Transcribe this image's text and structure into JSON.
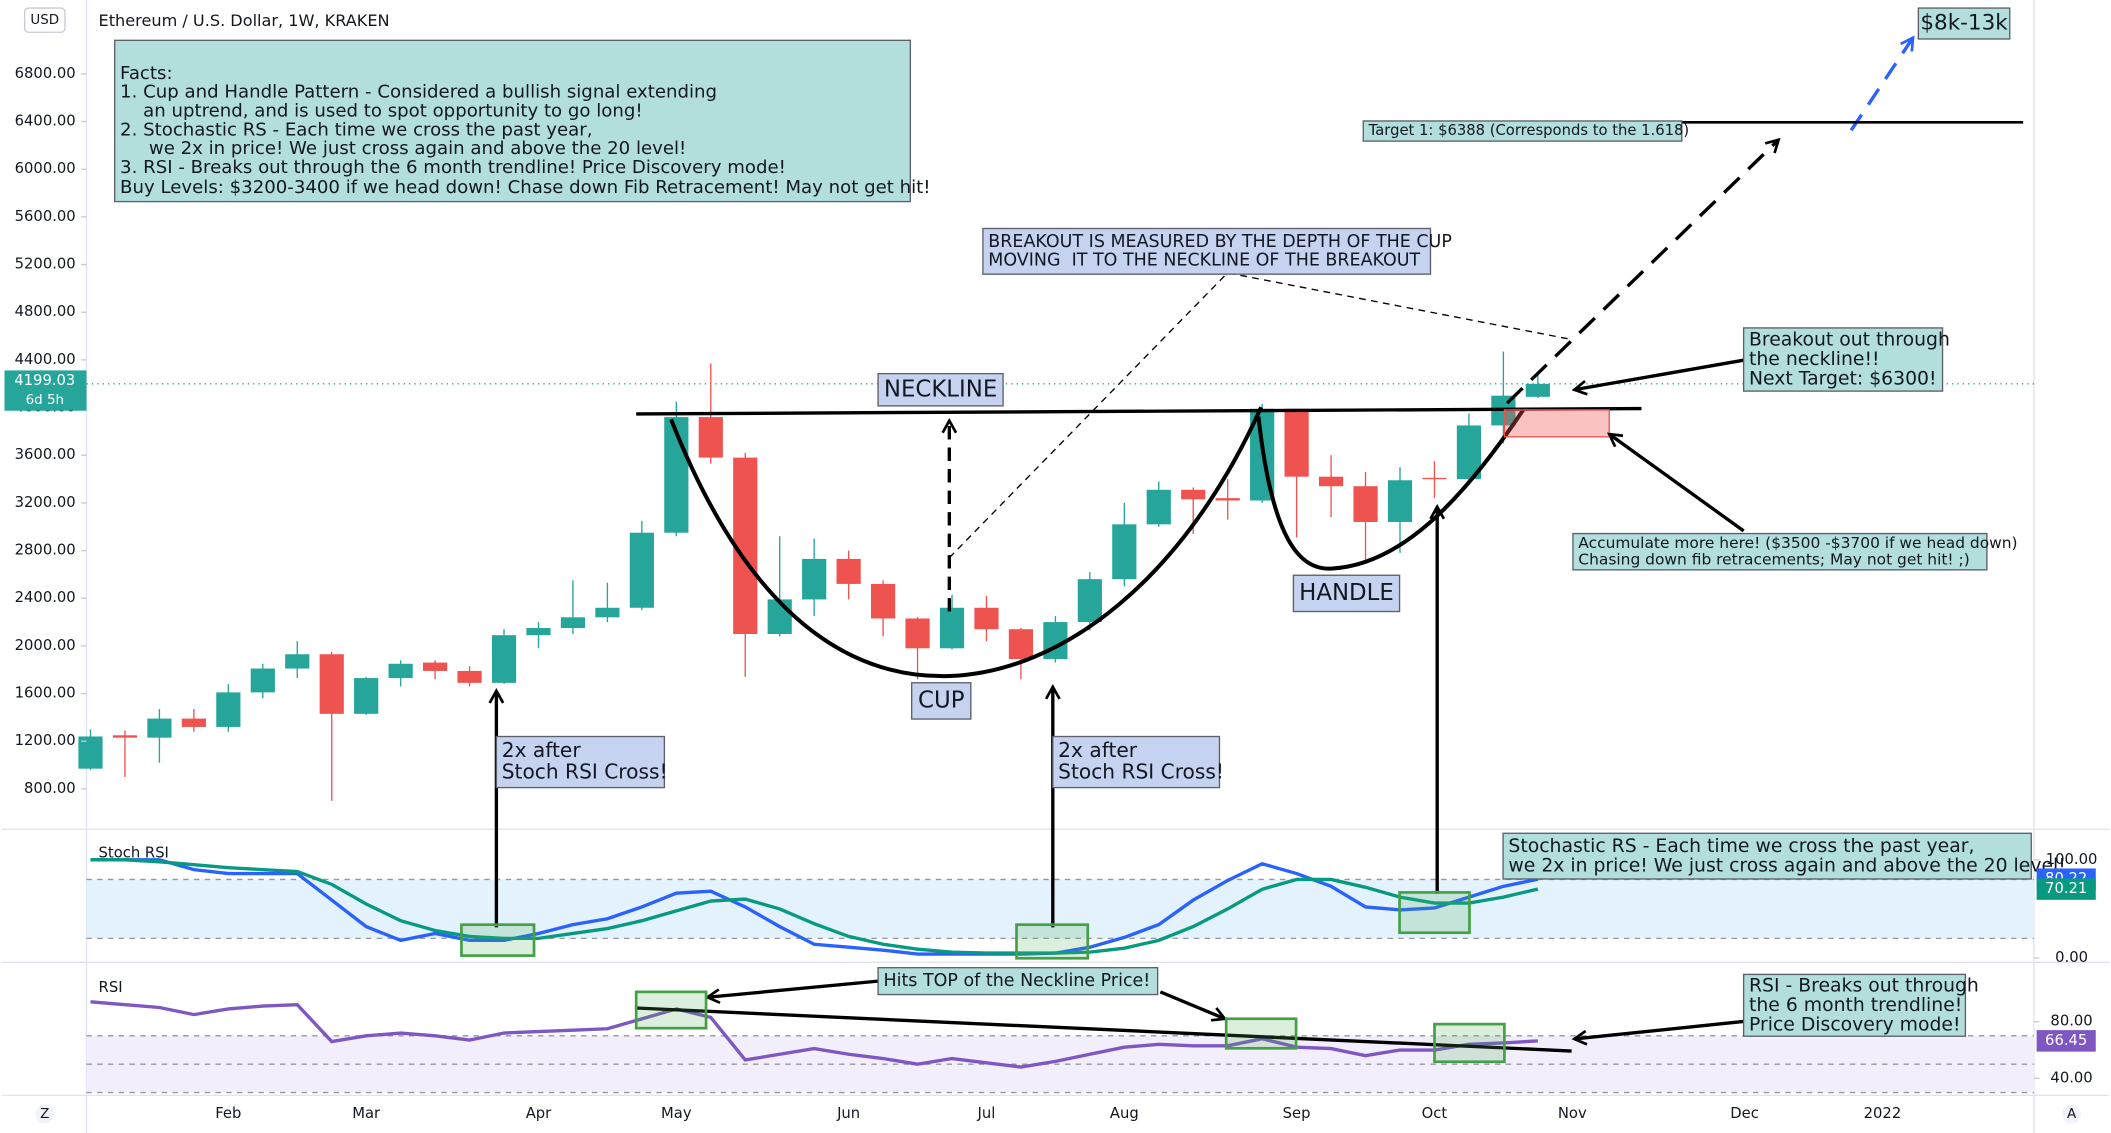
{
  "chart_data": [
    {
      "type": "candlestick",
      "title": "Ethereum / U.S. Dollar, 1W, KRAKEN",
      "currency": "USD",
      "countdown": "6d 5h",
      "categories": [
        null,
        null,
        null,
        null,
        "Feb",
        null,
        null,
        null,
        "Mar",
        null,
        null,
        null,
        null,
        "Apr",
        null,
        null,
        null,
        "May",
        null,
        null,
        null,
        null,
        "Jun",
        null,
        null,
        null,
        "Jul",
        null,
        null,
        null,
        "Aug",
        null,
        null,
        null,
        null,
        "Sep",
        null,
        null,
        null,
        "Oct",
        null,
        null,
        null,
        "Nov",
        null,
        null,
        null,
        null,
        "Dec",
        null,
        null,
        null,
        "2022",
        null,
        null,
        null,
        null
      ],
      "open": [
        970,
        1250,
        1230,
        1390,
        1320,
        1610,
        1810,
        1930,
        1430,
        1730,
        1860,
        1790,
        1690,
        2090,
        2150,
        2240,
        2320,
        2950,
        3920,
        3580,
        2100,
        2390,
        2730,
        2520,
        2230,
        1980,
        2320,
        2140,
        1890,
        2200,
        2560,
        3020,
        3310,
        3240,
        3220,
        3990,
        3420,
        3340,
        3040,
        3410,
        3400,
        3850,
        4090,
        null,
        null,
        null,
        null,
        null,
        null,
        null,
        null,
        null,
        null,
        null,
        null,
        null,
        null
      ],
      "high": [
        1300,
        1290,
        1470,
        1470,
        1680,
        1850,
        2040,
        1950,
        1740,
        1880,
        1880,
        1830,
        2140,
        2200,
        2550,
        2530,
        3050,
        4050,
        4370,
        3620,
        2920,
        2900,
        2800,
        2550,
        2240,
        2430,
        2420,
        2150,
        2250,
        2620,
        3200,
        3380,
        3330,
        3400,
        4030,
        3990,
        3600,
        3460,
        3500,
        3550,
        3950,
        4470,
        4300,
        null,
        null,
        null,
        null,
        null,
        null,
        null,
        null,
        null,
        null,
        null,
        null,
        null,
        null
      ],
      "low": [
        960,
        900,
        1020,
        1280,
        1280,
        1560,
        1730,
        700,
        1420,
        1660,
        1720,
        1660,
        1680,
        1980,
        2100,
        2200,
        2300,
        2920,
        3530,
        1740,
        2080,
        2250,
        2390,
        2080,
        1720,
        1970,
        2040,
        1720,
        1860,
        2130,
        2500,
        3000,
        2940,
        3060,
        3200,
        2910,
        3080,
        2700,
        2780,
        3240,
        3350,
        3700,
        4080,
        null,
        null,
        null,
        null,
        null,
        null,
        null,
        null,
        null,
        null,
        null,
        null,
        null,
        null
      ],
      "close": [
        1240,
        1230,
        1390,
        1320,
        1610,
        1810,
        1930,
        1430,
        1730,
        1850,
        1790,
        1690,
        2090,
        2150,
        2240,
        2320,
        2950,
        3920,
        3580,
        2100,
        2390,
        2730,
        2520,
        2230,
        1980,
        2320,
        2140,
        1890,
        2200,
        2560,
        3020,
        3310,
        3230,
        3220,
        3990,
        3420,
        3340,
        3040,
        3390,
        3400,
        3850,
        4100,
        4199.03,
        null,
        null,
        null,
        null,
        null,
        null,
        null,
        null,
        null,
        null,
        null,
        null,
        null,
        null
      ],
      "up_color": "#26a69a",
      "down_color": "#ef5350",
      "ylim": [
        484,
        7420
      ],
      "yticks": [
        {
          "value": 800,
          "label": "800.00"
        },
        {
          "value": 1200,
          "label": "1200.00"
        },
        {
          "value": 1600,
          "label": "1600.00"
        },
        {
          "value": 2000,
          "label": "2000.00"
        },
        {
          "value": 2400,
          "label": "2400.00"
        },
        {
          "value": 2800,
          "label": "2800.00"
        },
        {
          "value": 3200,
          "label": "3200.00"
        },
        {
          "value": 3600,
          "label": "3600.00"
        },
        {
          "value": 4000,
          "label": "4000.00"
        },
        {
          "value": 4400,
          "label": "4400.00"
        },
        {
          "value": 4800,
          "label": "4800.00"
        },
        {
          "value": 5200,
          "label": "5200.00"
        },
        {
          "value": 5600,
          "label": "5600.00"
        },
        {
          "value": 6000,
          "label": "6000.00"
        },
        {
          "value": 6400,
          "label": "6400.00"
        },
        {
          "value": 6800,
          "label": "6800.00"
        }
      ],
      "grid": false,
      "annotations": {
        "facts": [
          "Facts:",
          "1. Cup and Handle Pattern - Considered a bullish signal extending",
          "    an uptrend, and is used to spot opportunity to go long!",
          "2. Stochastic RS - Each time we cross the past year,",
          "     we 2x in price! We just cross again and above the 20 level!",
          "3. RSI - Breaks out through the 6 month trendline! Price Discovery mode!"
        ],
        "buy_levels": "Buy Levels: $3200-3400 if we head down! Chase down Fib Retracement! May not get hit!",
        "breakout_measure": [
          "BREAKOUT IS MEASURED BY THE DEPTH OF THE CUP",
          "MOVING  IT TO THE NECKLINE OF THE BREAKOUT"
        ],
        "target": "Target 1: $6388 (Corresponds to the 1.618)",
        "range": "$8k-13k",
        "breakout": [
          "Breakout out through",
          "the neckline!!",
          "Next Target: $6300!"
        ],
        "accumulate": [
          "Accumulate more here! ($3500 -$3700 if we head down)",
          "Chasing down fib retracements; May not get hit! ;)"
        ],
        "neckline": "NECKLINE",
        "cup": "CUP",
        "handle": "HANDLE",
        "cross_1": [
          "2x after",
          "Stoch RSI Cross!"
        ],
        "cross_2": [
          "2x after",
          "Stoch RSI Cross!"
        ],
        "stoch_note": [
          "Stochastic RS - Each time we cross the past year,",
          "we 2x in price! We just cross again and above the 20 level!"
        ],
        "hits_top": "Hits TOP of the Neckline Price!",
        "rsi_note": [
          "RSI - Breaks out through",
          "the 6 month trendline!",
          "Price Discovery mode!"
        ]
      }
    },
    {
      "type": "line",
      "title": "Stoch RSI",
      "series": [
        {
          "color": "#2962ff",
          "values": [
            100,
            100,
            100,
            90,
            86,
            86,
            86,
            59,
            32,
            18,
            25,
            18,
            18,
            25,
            34,
            40,
            52,
            66,
            68,
            52,
            32,
            14,
            11,
            8,
            4,
            4,
            4,
            4,
            5,
            11,
            21,
            34,
            59,
            79,
            96,
            86,
            73,
            52,
            49,
            51,
            62,
            73,
            80.22
          ]
        },
        {
          "color": "#089981",
          "values": [
            100,
            100,
            98,
            95,
            92,
            90,
            88,
            75,
            55,
            38,
            28,
            22,
            20,
            20,
            25,
            30,
            38,
            48,
            58,
            60,
            50,
            35,
            22,
            14,
            9,
            6,
            5,
            5,
            5,
            6,
            10,
            18,
            32,
            50,
            70,
            80,
            80,
            72,
            62,
            56,
            56,
            62,
            70.21
          ]
        }
      ],
      "bands": [
        20,
        80
      ],
      "band_color": "#e3f2fd",
      "ylim": [
        -3,
        127
      ],
      "yticks": [
        {
          "value": 100,
          "label": "100.00"
        },
        {
          "value": 0,
          "label": "0.00"
        }
      ]
    },
    {
      "type": "line",
      "title": "RSI",
      "series": [
        {
          "color": "#7e57c2",
          "values": [
            94,
            92,
            90,
            85,
            89,
            91,
            92,
            66,
            70,
            72,
            70,
            67,
            72,
            73,
            74,
            75,
            82,
            89,
            83,
            53,
            57,
            61,
            57,
            54,
            50,
            54,
            51,
            48,
            52,
            57,
            62,
            64,
            63,
            63,
            68,
            62,
            61,
            56,
            60,
            60,
            64,
            65,
            66.45
          ]
        }
      ],
      "bands": [
        30,
        70
      ],
      "midline": 50,
      "band_color": "#f3eefb",
      "ylim": [
        28,
        120
      ],
      "yticks": [
        {
          "value": 80,
          "label": "80.00"
        },
        {
          "value": 40,
          "label": "40.00"
        }
      ]
    }
  ]
}
